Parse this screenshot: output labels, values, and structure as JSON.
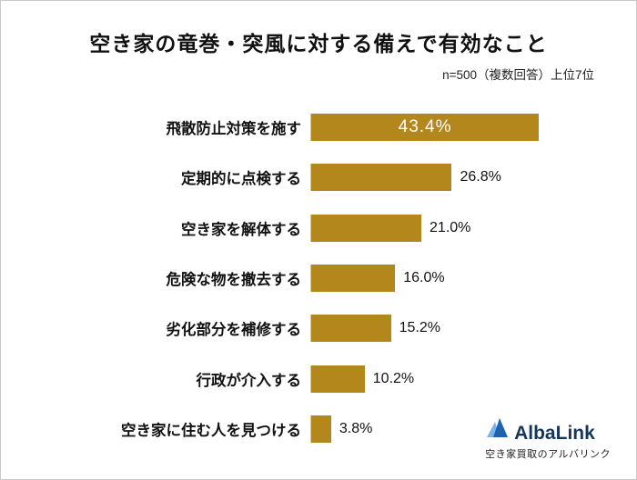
{
  "chart_data": {
    "type": "bar",
    "orientation": "horizontal",
    "title": "空き家の竜巻・突風に対する備えで有効なこと",
    "note": "n=500（複数回答）上位7位",
    "categories": [
      "飛散防止対策を施す",
      "定期的に点検する",
      "空き家を解体する",
      "危険な物を撤去する",
      "劣化部分を補修する",
      "行政が介入する",
      "空き家に住む人を見つける"
    ],
    "values": [
      43.4,
      26.8,
      21.0,
      16.0,
      15.2,
      10.2,
      3.8
    ],
    "value_labels": [
      "43.4%",
      "26.8%",
      "21.0%",
      "16.0%",
      "15.2%",
      "10.2%",
      "3.8%"
    ],
    "xlim": [
      0,
      55
    ],
    "bar_color": "#B3871C",
    "grid": false,
    "legend": false,
    "inside_label_threshold": 40
  },
  "logo": {
    "name": "AlbaLink",
    "subtitle": "空き家買取のアルバリンク",
    "dark_blue": "#1E63B0",
    "light_blue": "#7FB2E5",
    "text_color": "#16365c"
  }
}
